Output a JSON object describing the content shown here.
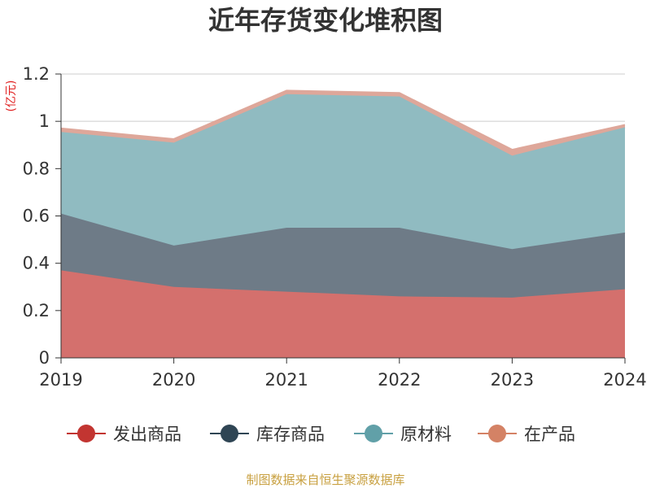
{
  "chart_data": {
    "type": "area",
    "title": "近年存货变化堆积图",
    "unit": "(亿元)",
    "categories": [
      "2019",
      "2020",
      "2021",
      "2022",
      "2023",
      "2024"
    ],
    "ylim": [
      0,
      1.2
    ],
    "yticks": [
      "0",
      "0.2",
      "0.4",
      "0.6",
      "0.8",
      "1",
      "1.2"
    ],
    "stacked": true,
    "grid": true,
    "legend_position": "bottom",
    "series": [
      {
        "name": "发出商品",
        "color": "#c23531",
        "fill": "#d4706d",
        "values": [
          0.37,
          0.3,
          0.28,
          0.26,
          0.255,
          0.29
        ]
      },
      {
        "name": "库存商品",
        "color": "#2f4554",
        "fill": "#6e7b87",
        "values": [
          0.24,
          0.175,
          0.27,
          0.29,
          0.205,
          0.24
        ]
      },
      {
        "name": "原材料",
        "color": "#61a0a8",
        "fill": "#90bbc1",
        "values": [
          0.345,
          0.435,
          0.565,
          0.555,
          0.395,
          0.445
        ]
      },
      {
        "name": "在产品",
        "color": "#d48265",
        "fill": "#dea79a",
        "values": [
          0.015,
          0.015,
          0.015,
          0.015,
          0.025,
          0.01
        ]
      }
    ],
    "source": "制图数据来自恒生聚源数据库"
  }
}
